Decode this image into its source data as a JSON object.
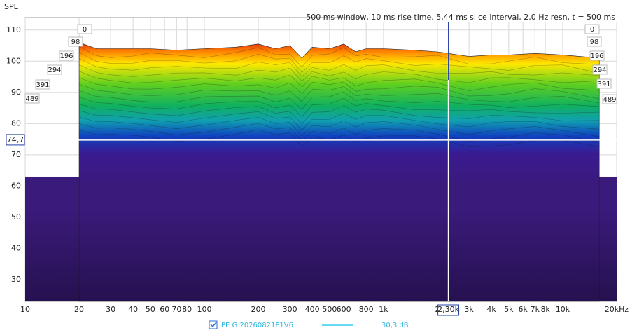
{
  "chart_data": {
    "type": "waterfall",
    "title": "500 ms window, 10 ms rise time, 5,44 ms slice interval, 2,0 Hz resn, t = 500 ms",
    "y_label": "SPL",
    "log_x": true,
    "grid": true,
    "xlim": [
      10,
      20000
    ],
    "ylim": [
      23,
      114
    ],
    "yticks": [
      30,
      40,
      50,
      60,
      70,
      80,
      90,
      100,
      110
    ],
    "xticks": [
      10,
      20,
      30,
      40,
      50,
      60,
      70,
      80,
      100,
      200,
      300,
      400,
      500,
      600,
      800,
      {
        "value": 1000,
        "label": "1k"
      },
      {
        "value": 2000,
        "label": "2"
      },
      {
        "value": 3000,
        "label": "3k"
      },
      {
        "value": 4000,
        "label": "4k"
      },
      {
        "value": 5000,
        "label": "5k"
      },
      {
        "value": 6000,
        "label": "6k"
      },
      {
        "value": 7000,
        "label": "7k"
      },
      {
        "value": 8000,
        "label": "8k"
      },
      {
        "value": 10000,
        "label": "10k"
      },
      {
        "value": 20000,
        "label": "20kHz"
      }
    ],
    "slices": [
      0,
      98,
      196,
      294,
      391,
      489
    ],
    "cursor": {
      "y": 74.7,
      "y_label": "74,7",
      "x": 2300,
      "x_label": "2,30k"
    },
    "series": [
      {
        "name": "PE G 20260821P1V6",
        "color": "#33ccee",
        "level_label": "30,3 dB",
        "x": [
          20,
          25,
          30,
          40,
          50,
          70,
          100,
          150,
          200,
          250,
          300,
          350,
          400,
          500,
          600,
          700,
          800,
          1000,
          1500,
          2000,
          3000,
          4000,
          5000,
          7000,
          10000,
          16000
        ],
        "values": [
          106,
          104,
          104,
          104,
          104,
          103.5,
          104,
          104.5,
          105.5,
          104,
          105,
          101,
          104.5,
          104,
          105.5,
          103,
          104,
          104,
          103.5,
          103,
          101.5,
          102,
          102,
          102.5,
          102,
          101
        ]
      }
    ]
  }
}
